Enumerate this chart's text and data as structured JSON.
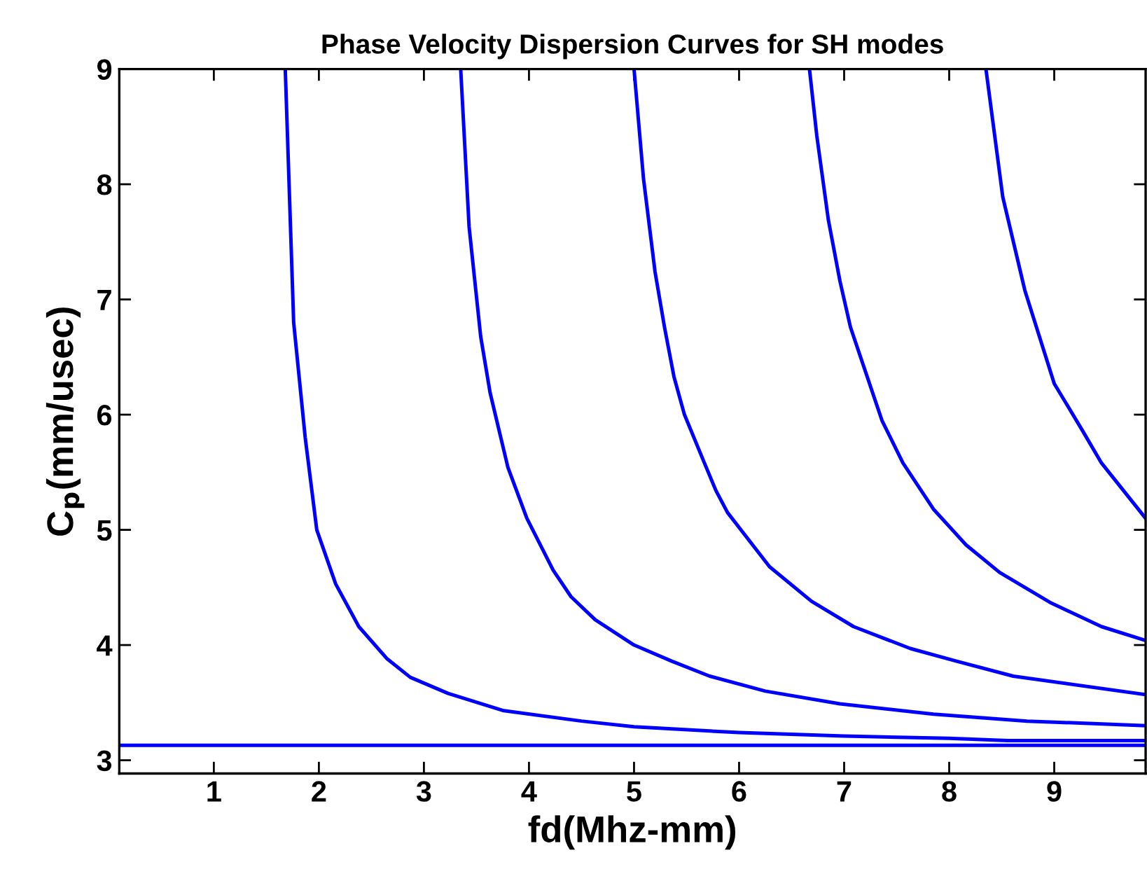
{
  "chart_data": {
    "type": "line",
    "title": "Phase Velocity Dispersion Curves for SH modes",
    "xlabel": "fd(Mhz-mm)",
    "ylabel": "C$_{p}$(mm/usec)",
    "xlim": [
      0.1,
      9.87
    ],
    "ylim": [
      2.885,
      9
    ],
    "xticks": [
      1,
      2,
      3,
      4,
      5,
      6,
      7,
      8,
      9
    ],
    "yticks": [
      3,
      4,
      5,
      6,
      7,
      8,
      9
    ],
    "grid": false,
    "marker": "none",
    "line_style": "solid",
    "series": [
      {
        "color": "#0000ff",
        "x": [
          0.1,
          9.87
        ],
        "values": [
          3.13,
          3.13
        ]
      },
      {
        "color": "#0000ff",
        "x": [
          1.68,
          1.76,
          1.87,
          1.98,
          2.16,
          2.38,
          2.65,
          2.87,
          3.23,
          3.76,
          4.5,
          5,
          6,
          7,
          8,
          8.56,
          9.87
        ],
        "values": [
          9,
          6.8,
          5.8,
          5.0,
          4.53,
          4.16,
          3.88,
          3.72,
          3.58,
          3.43,
          3.34,
          3.29,
          3.24,
          3.21,
          3.19,
          3.17,
          3.17
        ]
      },
      {
        "color": "#0000ff",
        "x": [
          3.35,
          3.43,
          3.54,
          3.63,
          3.8,
          3.98,
          4.23,
          4.4,
          4.63,
          5.0,
          5.36,
          5.72,
          6.25,
          6.96,
          7.85,
          8.74,
          9.87
        ],
        "values": [
          9,
          7.63,
          6.68,
          6.19,
          5.54,
          5.1,
          4.65,
          4.42,
          4.22,
          4.0,
          3.86,
          3.73,
          3.6,
          3.49,
          3.4,
          3.34,
          3.3
        ]
      },
      {
        "color": "#0000ff",
        "x": [
          5.0,
          5.09,
          5.2,
          5.29,
          5.38,
          5.48,
          5.67,
          5.78,
          5.89,
          6.29,
          6.69,
          7.09,
          7.63,
          8.07,
          8.61,
          9.87
        ],
        "values": [
          9,
          8.05,
          7.24,
          6.76,
          6.33,
          6.0,
          5.58,
          5.34,
          5.15,
          4.68,
          4.38,
          4.16,
          3.97,
          3.86,
          3.73,
          3.57
        ]
      },
      {
        "color": "#0000ff",
        "x": [
          6.67,
          6.74,
          6.85,
          6.96,
          7.06,
          7.36,
          7.56,
          7.85,
          8.16,
          8.48,
          8.96,
          9.45,
          9.87
        ],
        "values": [
          9,
          8.42,
          7.69,
          7.16,
          6.76,
          5.95,
          5.58,
          5.18,
          4.87,
          4.63,
          4.37,
          4.16,
          4.04
        ]
      },
      {
        "color": "#0000ff",
        "x": [
          8.35,
          8.51,
          8.72,
          9.0,
          9.27,
          9.45,
          9.87
        ],
        "values": [
          9,
          7.89,
          7.08,
          6.27,
          5.86,
          5.58,
          5.1
        ]
      }
    ]
  }
}
